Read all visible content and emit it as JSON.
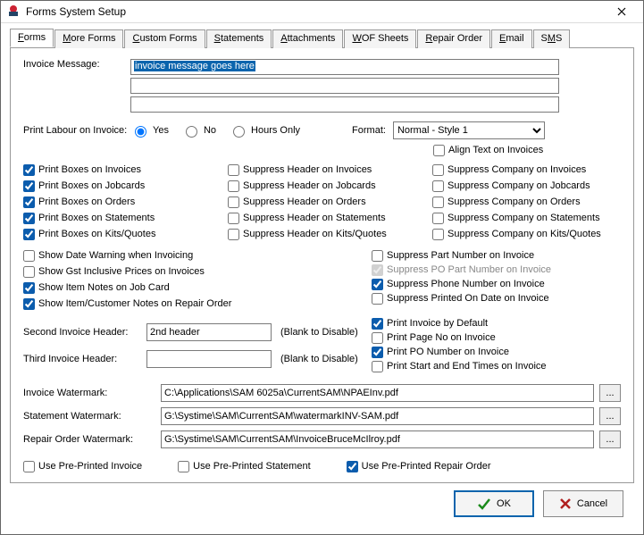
{
  "window": {
    "title": "Forms System Setup"
  },
  "tabs": [
    "Forms",
    "More Forms",
    "Custom Forms",
    "Statements",
    "Attachments",
    "WOF Sheets",
    "Repair Order",
    "Email",
    "SMS"
  ],
  "tab_underline_index": [
    0,
    0,
    0,
    0,
    0,
    0,
    0,
    0,
    1
  ],
  "active_tab": 0,
  "invoice_message_label": "Invoice Message:",
  "invoice_message_lines": [
    "invoice message goes here",
    "",
    ""
  ],
  "print_labour_label": "Print Labour on Invoice:",
  "print_labour_options": [
    "Yes",
    "No",
    "Hours Only"
  ],
  "print_labour_selected": 0,
  "format_label": "Format:",
  "format_options": [
    "Normal - Style 1"
  ],
  "format_selected": "Normal - Style 1",
  "align_text_label": "Align Text on Invoices",
  "align_text_checked": false,
  "col1": [
    {
      "label": "Print Boxes on Invoices",
      "checked": true
    },
    {
      "label": "Print Boxes on Jobcards",
      "checked": true
    },
    {
      "label": "Print Boxes on Orders",
      "checked": true
    },
    {
      "label": "Print Boxes on Statements",
      "checked": true
    },
    {
      "label": "Print Boxes on Kits/Quotes",
      "checked": true
    }
  ],
  "col2": [
    {
      "label": "Suppress Header on Invoices",
      "checked": false
    },
    {
      "label": "Suppress Header on Jobcards",
      "checked": false
    },
    {
      "label": "Suppress Header on Orders",
      "checked": false
    },
    {
      "label": "Suppress Header on Statements",
      "checked": false
    },
    {
      "label": "Suppress Header on Kits/Quotes",
      "checked": false
    }
  ],
  "col3": [
    {
      "label": "Suppress Company on Invoices",
      "checked": false
    },
    {
      "label": "Suppress Company on Jobcards",
      "checked": false
    },
    {
      "label": "Suppress Company on Orders",
      "checked": false
    },
    {
      "label": "Suppress Company on Statements",
      "checked": false
    },
    {
      "label": "Suppress Company on Kits/Quotes",
      "checked": false
    }
  ],
  "leftGroup": [
    {
      "label": "Show Date Warning when Invoicing",
      "checked": false
    },
    {
      "label": "Show Gst Inclusive Prices on Invoices",
      "checked": false
    },
    {
      "label": "Show Item Notes on Job Card",
      "checked": true
    },
    {
      "label": "Show Item/Customer Notes on Repair Order",
      "checked": true
    }
  ],
  "rightGroup": [
    {
      "label": "Suppress Part Number on Invoice",
      "checked": false,
      "disabled": false
    },
    {
      "label": "Suppress PO Part Number on Invoice",
      "checked": true,
      "disabled": true
    },
    {
      "label": "Suppress Phone Number on Invoice",
      "checked": true,
      "disabled": false
    },
    {
      "label": "Suppress Printed On Date on Invoice",
      "checked": false,
      "disabled": false
    }
  ],
  "rightGroup2": [
    {
      "label": "Print Invoice by Default",
      "checked": true
    },
    {
      "label": "Print Page No on Invoice",
      "checked": false
    },
    {
      "label": "Print PO Number on Invoice",
      "checked": true
    },
    {
      "label": "Print Start and End Times on Invoice",
      "checked": false
    }
  ],
  "second_header_label": "Second Invoice Header:",
  "second_header_value": "2nd header",
  "third_header_label": "Third Invoice Header:",
  "third_header_value": "",
  "blank_hint": "(Blank to Disable)",
  "watermarks": [
    {
      "label": "Invoice Watermark:",
      "value": "C:\\Applications\\SAM 6025a\\CurrentSAM\\NPAEInv.pdf"
    },
    {
      "label": "Statement Watermark:",
      "value": "G:\\Systime\\SAM\\CurrentSAM\\watermarkINV-SAM.pdf"
    },
    {
      "label": "Repair Order Watermark:",
      "value": "G:\\Systime\\SAM\\CurrentSAM\\InvoiceBruceMcIlroy.pdf"
    }
  ],
  "preprinted": [
    {
      "label": "Use Pre-Printed Invoice",
      "checked": false
    },
    {
      "label": "Use Pre-Printed Statement",
      "checked": false
    },
    {
      "label": "Use Pre-Printed Repair Order",
      "checked": true
    }
  ],
  "buttons": {
    "ok": "OK",
    "cancel": "Cancel"
  }
}
